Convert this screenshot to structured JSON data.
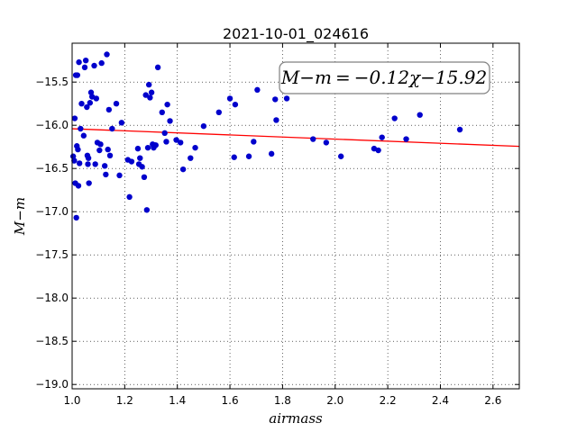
{
  "chart_data": {
    "type": "scatter",
    "title": "2021-10-01_024616",
    "xlabel": "airmass",
    "ylabel": "M−m",
    "xlim": [
      1.0,
      2.7
    ],
    "ylim": [
      -19.05,
      -15.05
    ],
    "x_ticks": [
      1.0,
      1.2,
      1.4,
      1.6,
      1.8,
      2.0,
      2.2,
      2.4,
      2.6
    ],
    "x_tick_labels": [
      "1.0",
      "1.2",
      "1.4",
      "1.6",
      "1.8",
      "2.0",
      "2.2",
      "2.4",
      "2.6"
    ],
    "y_ticks": [
      -15.5,
      -16.0,
      -16.5,
      -17.0,
      -17.5,
      -18.0,
      -18.5,
      -19.0
    ],
    "y_tick_labels": [
      "−15.5",
      "−16.0",
      "−16.5",
      "−17.0",
      "−17.5",
      "−18.0",
      "−18.5",
      "−19.0"
    ],
    "grid": true,
    "annotation": "M−m = −0.12χ−15.92",
    "fit": {
      "slope": -0.12,
      "intercept": -15.92,
      "color": "#ff0000"
    },
    "point_color": "#0000cc",
    "points": [
      [
        1.004,
        -16.36
      ],
      [
        1.008,
        -16.41
      ],
      [
        1.01,
        -15.92
      ],
      [
        1.012,
        -16.67
      ],
      [
        1.014,
        -15.42
      ],
      [
        1.016,
        -17.07
      ],
      [
        1.018,
        -16.24
      ],
      [
        1.02,
        -15.42
      ],
      [
        1.022,
        -16.28
      ],
      [
        1.024,
        -16.7
      ],
      [
        1.026,
        -15.27
      ],
      [
        1.028,
        -16.44
      ],
      [
        1.032,
        -16.04
      ],
      [
        1.036,
        -15.75
      ],
      [
        1.044,
        -16.12
      ],
      [
        1.048,
        -15.33
      ],
      [
        1.052,
        -15.25
      ],
      [
        1.056,
        -15.79
      ],
      [
        1.058,
        -16.35
      ],
      [
        1.06,
        -16.45
      ],
      [
        1.062,
        -16.38
      ],
      [
        1.064,
        -16.67
      ],
      [
        1.068,
        -15.74
      ],
      [
        1.072,
        -15.62
      ],
      [
        1.076,
        -15.67
      ],
      [
        1.084,
        -15.31
      ],
      [
        1.088,
        -16.45
      ],
      [
        1.092,
        -15.69
      ],
      [
        1.096,
        -16.2
      ],
      [
        1.104,
        -16.29
      ],
      [
        1.108,
        -16.22
      ],
      [
        1.112,
        -15.28
      ],
      [
        1.124,
        -16.47
      ],
      [
        1.128,
        -16.57
      ],
      [
        1.132,
        -15.18
      ],
      [
        1.136,
        -16.28
      ],
      [
        1.14,
        -15.82
      ],
      [
        1.144,
        -16.35
      ],
      [
        1.152,
        -16.04
      ],
      [
        1.168,
        -15.75
      ],
      [
        1.18,
        -16.58
      ],
      [
        1.188,
        -15.97
      ],
      [
        1.212,
        -16.4
      ],
      [
        1.218,
        -16.83
      ],
      [
        1.226,
        -16.42
      ],
      [
        1.25,
        -16.27
      ],
      [
        1.254,
        -16.45
      ],
      [
        1.258,
        -16.38
      ],
      [
        1.266,
        -16.48
      ],
      [
        1.274,
        -16.6
      ],
      [
        1.28,
        -15.65
      ],
      [
        1.284,
        -16.98
      ],
      [
        1.288,
        -16.26
      ],
      [
        1.292,
        -15.53
      ],
      [
        1.296,
        -15.68
      ],
      [
        1.302,
        -15.62
      ],
      [
        1.306,
        -16.22
      ],
      [
        1.31,
        -16.26
      ],
      [
        1.314,
        -16.23
      ],
      [
        1.318,
        -16.23
      ],
      [
        1.326,
        -15.33
      ],
      [
        1.342,
        -15.85
      ],
      [
        1.352,
        -16.09
      ],
      [
        1.358,
        -16.19
      ],
      [
        1.362,
        -15.76
      ],
      [
        1.372,
        -15.95
      ],
      [
        1.396,
        -16.17
      ],
      [
        1.412,
        -16.2
      ],
      [
        1.422,
        -16.51
      ],
      [
        1.45,
        -16.38
      ],
      [
        1.468,
        -16.26
      ],
      [
        1.5,
        -16.01
      ],
      [
        1.558,
        -15.85
      ],
      [
        1.6,
        -15.69
      ],
      [
        1.616,
        -16.37
      ],
      [
        1.62,
        -15.76
      ],
      [
        1.672,
        -16.36
      ],
      [
        1.69,
        -16.19
      ],
      [
        1.704,
        -15.59
      ],
      [
        1.758,
        -16.33
      ],
      [
        1.772,
        -15.7
      ],
      [
        1.776,
        -15.94
      ],
      [
        1.816,
        -15.69
      ],
      [
        1.916,
        -16.16
      ],
      [
        1.966,
        -16.2
      ],
      [
        2.022,
        -16.36
      ],
      [
        2.148,
        -16.27
      ],
      [
        2.164,
        -16.29
      ],
      [
        2.178,
        -16.14
      ],
      [
        2.226,
        -15.92
      ],
      [
        2.27,
        -16.16
      ],
      [
        2.322,
        -15.88
      ],
      [
        2.474,
        -16.05
      ]
    ]
  }
}
